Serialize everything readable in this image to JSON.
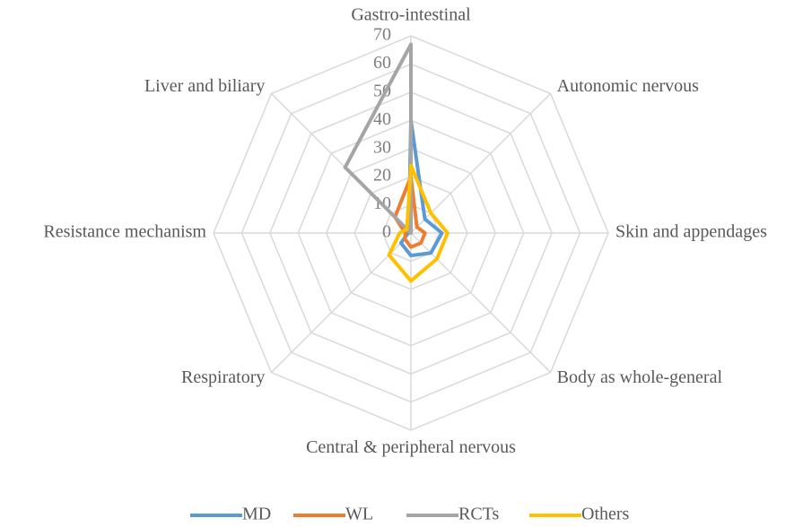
{
  "chart_data": {
    "type": "radar",
    "categories": [
      "Gastro-intestinal",
      "Autonomic nervous",
      "Skin and appendages",
      "Body as whole-general",
      "Central & peripheral nervous",
      "Respiratory",
      "Resistance mechanism",
      "Liver and biliary"
    ],
    "series": [
      {
        "name": "MD",
        "color": "#5b9bd5",
        "values": [
          40,
          7,
          11,
          10,
          8,
          5,
          1,
          1
        ]
      },
      {
        "name": "WL",
        "color": "#ed7d31",
        "values": [
          20,
          3,
          5,
          5,
          5,
          3,
          2,
          8
        ]
      },
      {
        "name": "RCTs",
        "color": "#a5a5a5",
        "values": [
          67,
          0,
          0,
          0,
          0,
          0,
          0,
          33
        ]
      },
      {
        "name": "Others",
        "color": "#ffc000",
        "values": [
          24,
          10,
          13,
          13,
          17,
          11,
          4,
          2
        ]
      }
    ],
    "ylim": [
      0,
      70
    ],
    "yticks": [
      0,
      10,
      20,
      30,
      40,
      50,
      60,
      70
    ],
    "grid": true,
    "legend": "bottom"
  }
}
